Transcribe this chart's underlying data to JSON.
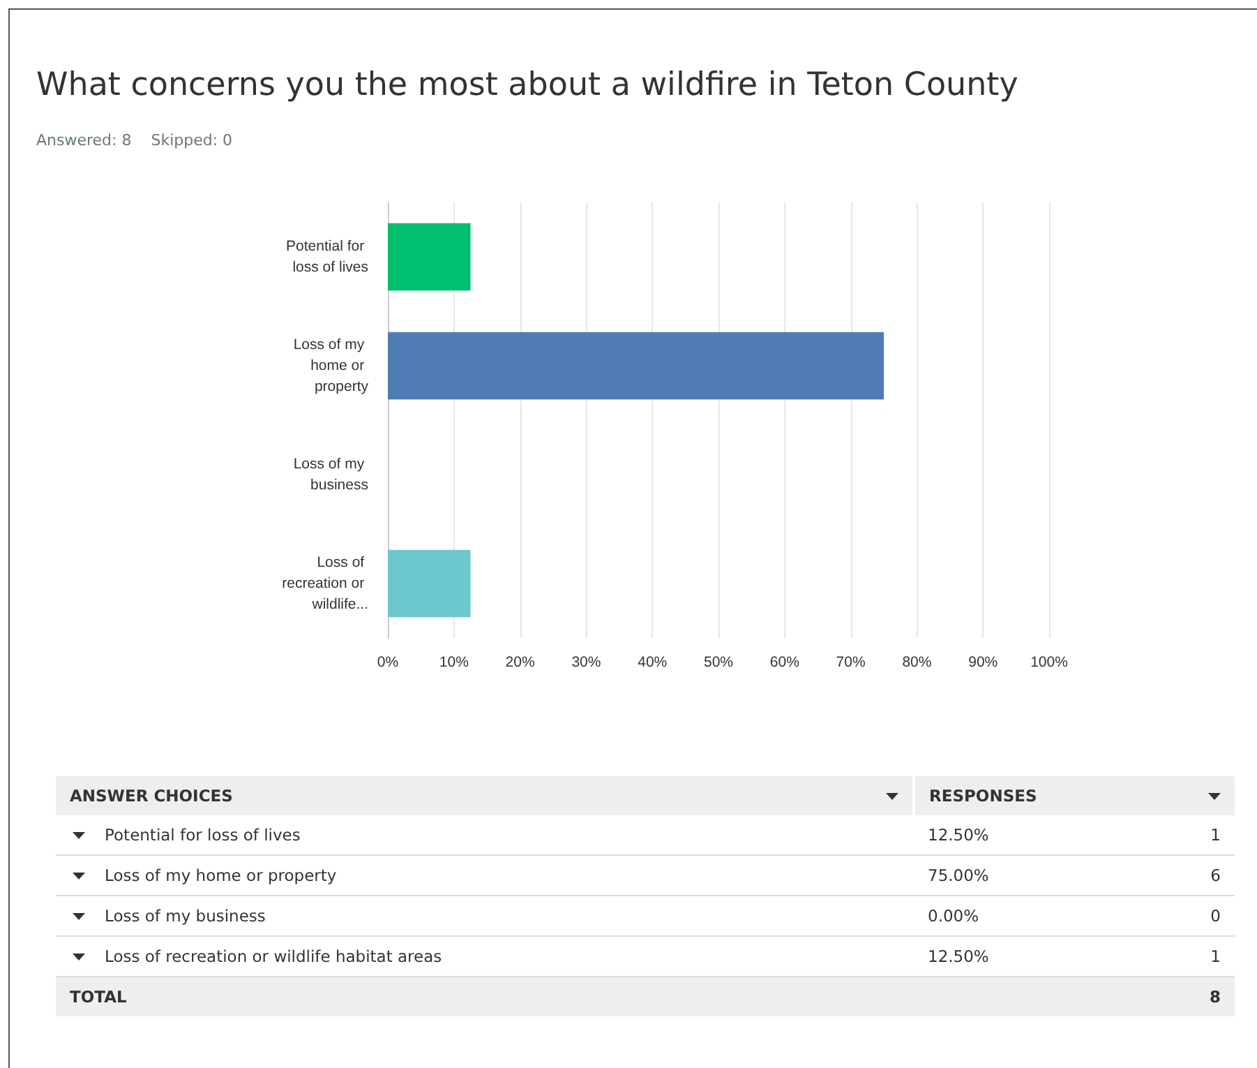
{
  "chart_data": {
    "type": "bar",
    "orientation": "horizontal",
    "title": "What concerns you the most about a wildfire in Teton County",
    "subtitle": "Answered: 8    Skipped: 0",
    "categories": [
      "Potential for loss of lives",
      "Loss of my home or property",
      "Loss of my business",
      "Loss of recreation or wildlife..."
    ],
    "values": [
      12.5,
      75,
      0,
      12.5
    ],
    "colors": [
      "#00bf6f",
      "#507cb6",
      "#f9be00",
      "#6bc8cd"
    ],
    "xlim": [
      0,
      100
    ],
    "xticks": [
      {
        "value": 0,
        "label": "0%"
      },
      {
        "value": 10,
        "label": "10%"
      },
      {
        "value": 20,
        "label": "20%"
      },
      {
        "value": 30,
        "label": "30%"
      },
      {
        "value": 40,
        "label": "40%"
      },
      {
        "value": 50,
        "label": "50%"
      },
      {
        "value": 60,
        "label": "60%"
      },
      {
        "value": 70,
        "label": "70%"
      },
      {
        "value": 80,
        "label": "80%"
      },
      {
        "value": 90,
        "label": "90%"
      },
      {
        "value": 100,
        "label": "100%"
      }
    ],
    "grid": "x",
    "annotations": [
      "ANSWER CHOICES",
      "RESPONSES",
      "Potential for loss of lives",
      "12.50%",
      "1",
      "Loss of my home or property",
      "75.00%",
      "6",
      "Loss of my business",
      "0.00%",
      "0",
      "Loss of recreation or wildlife habitat areas",
      "12.50%",
      "1",
      "TOTAL",
      "8"
    ]
  }
}
